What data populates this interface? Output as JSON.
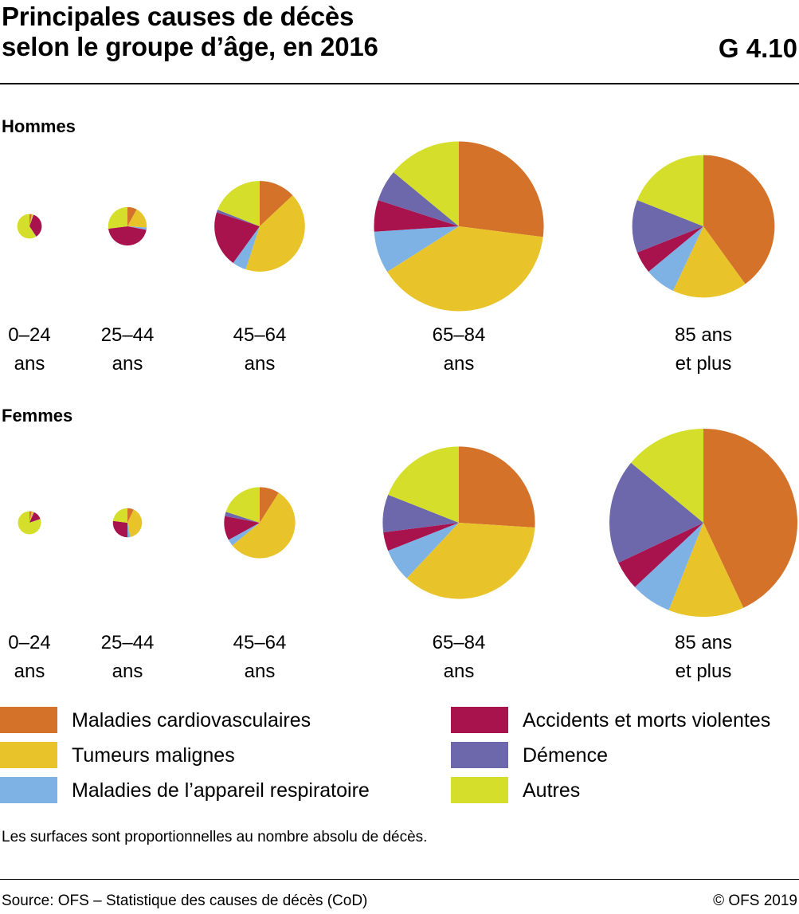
{
  "header": {
    "title_line1": "Principales causes de décès",
    "title_line2": "selon le groupe d’âge, en 2016",
    "code": "G 4.10"
  },
  "legend_items": [
    {
      "label": "Maladies cardiovasculaires",
      "color": "#d4722a"
    },
    {
      "label": "Tumeurs malignes",
      "color": "#e8c42a"
    },
    {
      "label": "Maladies de l’appareil respiratoire",
      "color": "#7fb2e4"
    },
    {
      "label": "Accidents et morts violentes",
      "color": "#a8124d"
    },
    {
      "label": "Démence",
      "color": "#6c68ab"
    },
    {
      "label": "Autres",
      "color": "#d5df2b"
    }
  ],
  "chart_data": [
    {
      "type": "pie",
      "title": "Hommes",
      "note": "Les surfaces sont proportionnelles au nombre absolu de décès.",
      "categories": [
        "Maladies cardiovasculaires",
        "Tumeurs malignes",
        "Maladies de l’appareil respiratoire",
        "Accidents et morts violentes",
        "Démence",
        "Autres"
      ],
      "groups": [
        {
          "label_lines": [
            "0–24",
            "ans"
          ],
          "size": 0.017,
          "shares": [
            3,
            2,
            0.5,
            35,
            0.5,
            59
          ]
        },
        {
          "label_lines": [
            "25–44",
            "ans"
          ],
          "size": 0.042,
          "shares": [
            8,
            18,
            2,
            45,
            0,
            27
          ]
        },
        {
          "label_lines": [
            "45–64",
            "ans"
          ],
          "size": 0.232,
          "shares": [
            13,
            42,
            5,
            20,
            1,
            19
          ]
        },
        {
          "label_lines": [
            "65–84",
            "ans"
          ],
          "size": 0.815,
          "shares": [
            27,
            39,
            8,
            6,
            6,
            14
          ]
        },
        {
          "label_lines": [
            "85 ans",
            "et plus"
          ],
          "size": 0.574,
          "shares": [
            40,
            17,
            7,
            5,
            12,
            19
          ]
        }
      ]
    },
    {
      "type": "pie",
      "title": "Femmes",
      "categories": [
        "Maladies cardiovasculaires",
        "Tumeurs malignes",
        "Maladies de l’appareil respiratoire",
        "Accidents et morts violentes",
        "Démence",
        "Autres"
      ],
      "groups": [
        {
          "label_lines": [
            "0–24",
            "ans"
          ],
          "size": 0.015,
          "shares": [
            3,
            3,
            0.5,
            13,
            0.5,
            80
          ]
        },
        {
          "label_lines": [
            "25–44",
            "ans"
          ],
          "size": 0.024,
          "shares": [
            7,
            40,
            3,
            27,
            0,
            23
          ]
        },
        {
          "label_lines": [
            "45–64",
            "ans"
          ],
          "size": 0.143,
          "shares": [
            9,
            55,
            3,
            11,
            2,
            20
          ]
        },
        {
          "label_lines": [
            "65–84",
            "ans"
          ],
          "size": 0.656,
          "shares": [
            26,
            36,
            7,
            4,
            8,
            19
          ]
        },
        {
          "label_lines": [
            "85 ans",
            "et plus"
          ],
          "size": 1.0,
          "shares": [
            43,
            13,
            7,
            5,
            18,
            14
          ]
        }
      ]
    }
  ],
  "footer": {
    "note": "Les surfaces sont proportionnelles au nombre absolu de décès.",
    "source": "Source: OFS – Statistique des causes de décès (CoD)",
    "copyright": "© OFS 2019"
  }
}
